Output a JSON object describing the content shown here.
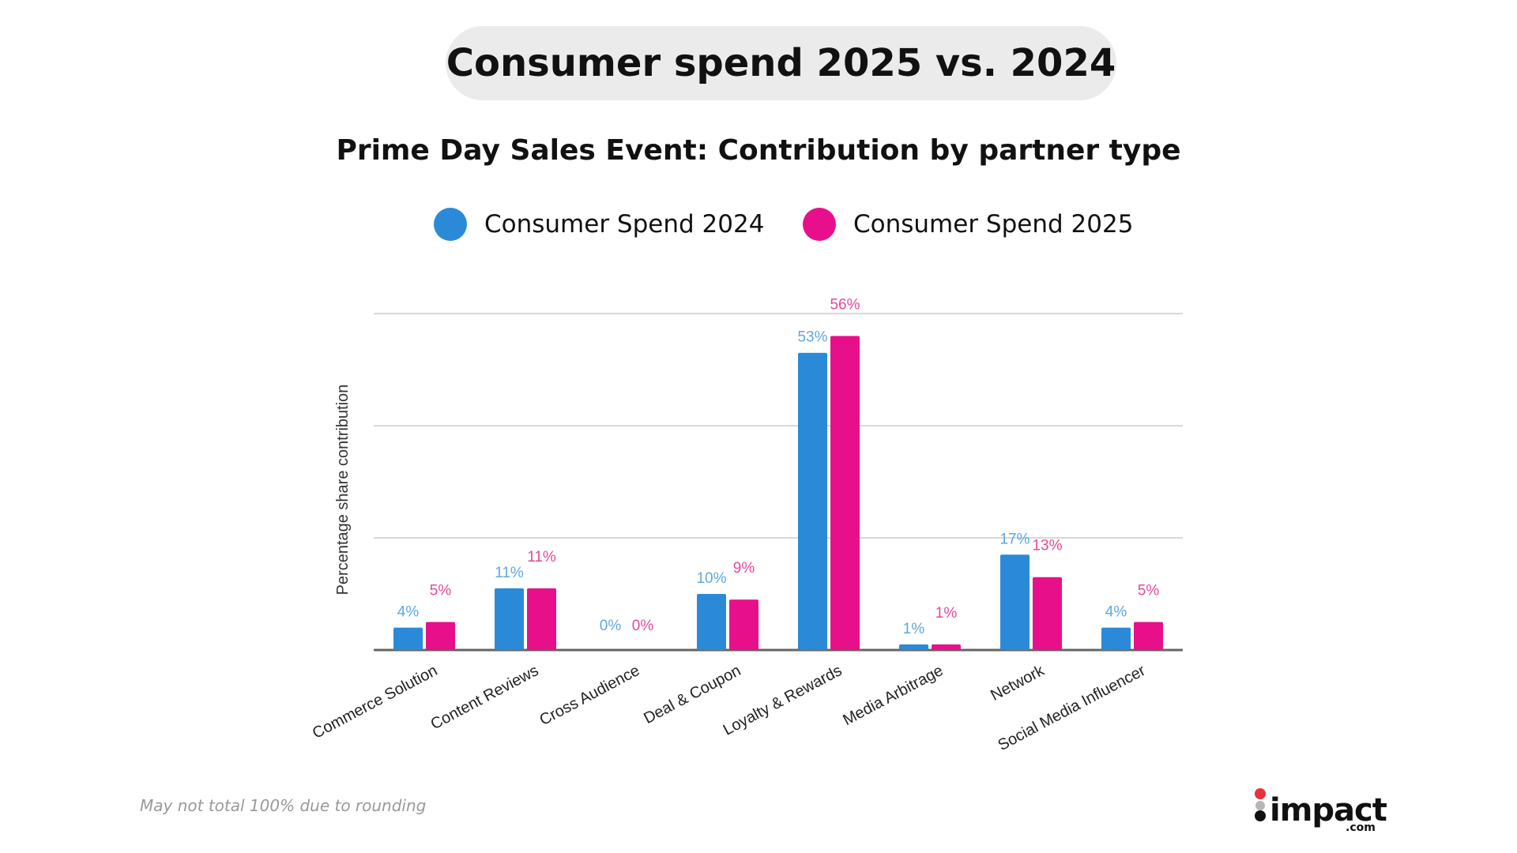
{
  "header": {
    "title": "Consumer spend 2025 vs. 2024"
  },
  "footnote": "May not total 100% due to rounding",
  "logo": {
    "text": "impact",
    "suffix": ".com"
  },
  "chart_data": {
    "type": "bar",
    "title": "Prime Day Sales Event: Contribution by partner type",
    "ylabel": "Percentage share contribution",
    "xlabel": "",
    "ylim": [
      0,
      60
    ],
    "grid": true,
    "gridlines": [
      20,
      40,
      60
    ],
    "legend_position": "top",
    "categories": [
      "Commerce Solution",
      "Content Reviews",
      "Cross Audience",
      "Deal & Coupon",
      "Loyalty & Rewards",
      "Media Arbitrage",
      "Network",
      "Social Media Influencer"
    ],
    "series": [
      {
        "name": "Consumer Spend 2024",
        "color": "#2b8ad8",
        "label_color": "#5ea7e3",
        "values": [
          4,
          11,
          0,
          10,
          53,
          1,
          17,
          4
        ],
        "labels": [
          "4%",
          "11%",
          "0%",
          "10%",
          "53%",
          "1%",
          "17%",
          "4%"
        ]
      },
      {
        "name": "Consumer Spend 2025",
        "color": "#e8108a",
        "label_color": "#e5489c",
        "values": [
          5,
          11,
          0,
          9,
          56,
          1,
          13,
          5
        ],
        "labels": [
          "5%",
          "11%",
          "0%",
          "9%",
          "56%",
          "1%",
          "13%",
          "5%"
        ]
      }
    ]
  }
}
